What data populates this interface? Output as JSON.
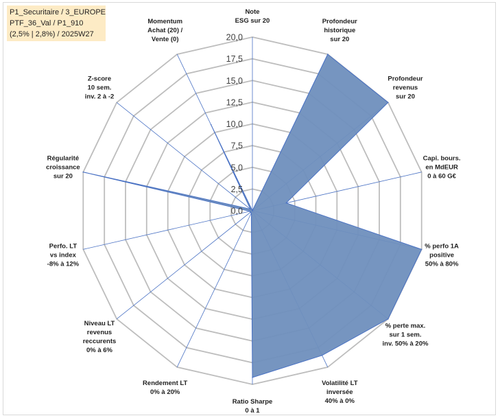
{
  "info_box": {
    "line1": "P1_Securitaire / 3_EUROPE",
    "line2": "PTF_36_Val / P1_910",
    "line3": "(2,5% | 2,8%) / 2025W27"
  },
  "colors": {
    "fill": "#6f8fbd",
    "stroke": "#4a72c4",
    "grid": "#bdbdbd",
    "axis_line": "#4a72c4"
  },
  "chart_data": {
    "type": "radar",
    "rmin": 0,
    "rmax": 20,
    "ticks": [
      0,
      2.5,
      5,
      7.5,
      10,
      12.5,
      15,
      17.5,
      20
    ],
    "tick_labels": [
      "0,0",
      "2,5",
      "5,0",
      "7,5",
      "10,0",
      "12,5",
      "15,0",
      "17,5",
      "20,0"
    ],
    "grid": true,
    "axes": [
      {
        "label": [
          "Note",
          "ESG sur 20"
        ],
        "value": 0
      },
      {
        "label": [
          "Profondeur",
          "historique",
          "sur 20"
        ],
        "value": 20
      },
      {
        "label": [
          "Profondeur",
          "revenus",
          "sur 20"
        ],
        "value": 20
      },
      {
        "label": [
          "Capi. bours.",
          "en MdEUR",
          "0 à 60 G€"
        ],
        "value": 4
      },
      {
        "label": [
          "% perfo 1A",
          "positive",
          "50% à 80%"
        ],
        "value": 20
      },
      {
        "label": [
          "% perte max.",
          "sur 1 sem.",
          "inv. 50% à 20%"
        ],
        "value": 20
      },
      {
        "label": [
          "Volatilité LT",
          "inversée",
          "40% à 0%"
        ],
        "value": 18.5
      },
      {
        "label": [
          "Ratio Sharpe",
          "0 à 1"
        ],
        "value": 19.2
      },
      {
        "label": [
          "Rendement LT",
          "0% à 20%"
        ],
        "value": 0.3
      },
      {
        "label": [
          "Niveau LT",
          "revenus",
          "reccurents",
          "0% à 6%"
        ],
        "value": 0.3
      },
      {
        "label": [
          "Perfo. LT",
          "vs index",
          "-8% à 12%"
        ],
        "value": 0.3
      },
      {
        "label": [
          "Régularité",
          "croissance",
          "sur 20"
        ],
        "value": 20
      },
      {
        "label": [
          "Z-score",
          "10 sem.",
          "inv. 2 à -2"
        ],
        "value": 0.3
      },
      {
        "label": [
          "Momentum",
          "Achat (20) /",
          "Vente (0)"
        ],
        "value": 11
      }
    ]
  }
}
